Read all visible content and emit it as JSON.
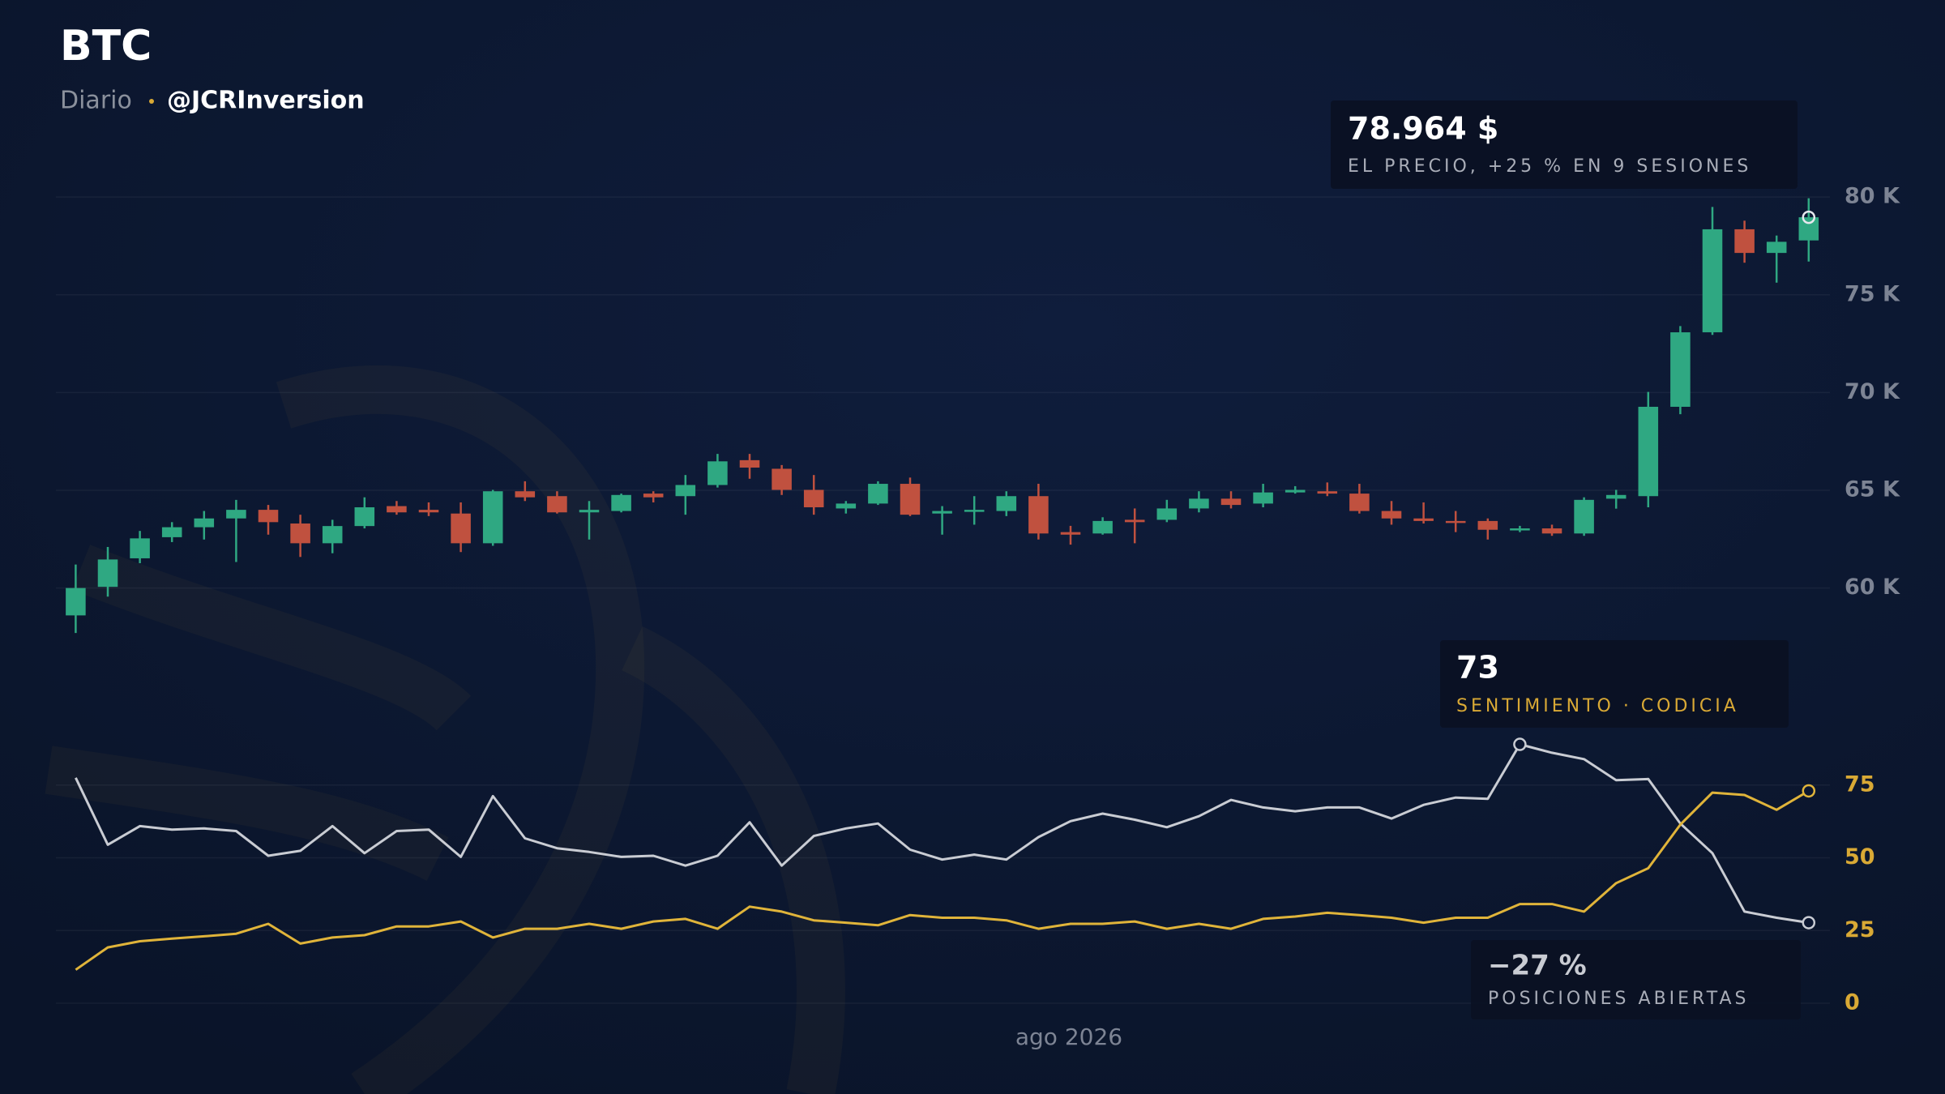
{
  "header": {
    "title": "BTC",
    "subtitle": "Diario",
    "source": "@JCRInversion"
  },
  "chart_data": [
    {
      "type": "candlestick",
      "up_color": "#2fa882",
      "down_color": "#c0513f",
      "open": [
        58600,
        60060,
        61520,
        62600,
        63110,
        63560,
        64000,
        63300,
        62290,
        63170,
        64190,
        64000,
        63810,
        62290,
        64950,
        64700,
        63870,
        63940,
        64830,
        64700,
        65270,
        66540,
        66100,
        65020,
        64070,
        64320,
        65330,
        63810,
        63940,
        63940,
        64700,
        62860,
        62790,
        63490,
        63490,
        64070,
        64570,
        64320,
        64890,
        64950,
        64830,
        63940,
        63560,
        63430,
        63430,
        62980,
        63050,
        62790,
        64570,
        64700,
        69270,
        73080,
        78350,
        77140,
        77780
      ],
      "high": [
        61200,
        62100,
        62920,
        63370,
        63940,
        64510,
        64250,
        63750,
        63490,
        64640,
        64450,
        64380,
        64380,
        65020,
        65460,
        64950,
        64450,
        64830,
        64950,
        65780,
        66860,
        66860,
        66290,
        65780,
        64450,
        65460,
        65650,
        64190,
        64700,
        64950,
        65330,
        63180,
        63620,
        64070,
        64510,
        64950,
        64950,
        65330,
        65210,
        65400,
        65330,
        64450,
        64380,
        63940,
        63560,
        63180,
        63240,
        64640,
        65020,
        70030,
        73400,
        79490,
        78790,
        78030,
        79940
      ],
      "low": [
        57700,
        59560,
        61270,
        62350,
        62480,
        61330,
        62730,
        61590,
        61780,
        63050,
        63750,
        63680,
        61840,
        62160,
        64450,
        63810,
        62480,
        63870,
        64380,
        63750,
        65140,
        65590,
        64760,
        63750,
        63810,
        64250,
        63680,
        62730,
        63240,
        63680,
        62480,
        62220,
        62730,
        62290,
        63370,
        63870,
        64070,
        64130,
        64830,
        64700,
        63810,
        63240,
        63300,
        62860,
        62480,
        62860,
        62670,
        62670,
        64060,
        64130,
        68890,
        72950,
        76640,
        75620,
        76700
      ],
      "close": [
        60000,
        61460,
        62540,
        63110,
        63560,
        64000,
        63370,
        62290,
        63170,
        64130,
        63870,
        63870,
        62290,
        64950,
        64640,
        63870,
        64000,
        64760,
        64640,
        65270,
        66480,
        66160,
        65020,
        64130,
        64320,
        65330,
        63750,
        63940,
        64000,
        64700,
        62790,
        62730,
        63430,
        63370,
        64070,
        64570,
        64250,
        64890,
        65020,
        64830,
        63940,
        63560,
        63430,
        63370,
        62980,
        63050,
        62790,
        64510,
        64760,
        69270,
        73080,
        78350,
        77140,
        77710,
        78964
      ],
      "ylim": [
        57000,
        81000
      ],
      "yticks": [
        {
          "value": 60000,
          "label": "60 K"
        },
        {
          "value": 65000,
          "label": "65 K"
        },
        {
          "value": 70000,
          "label": "70 K"
        },
        {
          "value": 75000,
          "label": "75 K"
        },
        {
          "value": 80000,
          "label": "80 K"
        }
      ],
      "grid": true,
      "annotation": {
        "value": "78.964 $",
        "text": "EL PRECIO, +25 % EN 9 SESIONES"
      }
    },
    {
      "type": "line",
      "series": [
        {
          "color": "#c9ccd3",
          "values": [
            77.5,
            54.5,
            60.9,
            59.7,
            60.1,
            59.2,
            50.7,
            52.4,
            60.9,
            51.6,
            59.2,
            59.7,
            50.3,
            71.2,
            56.7,
            53.3,
            52.0,
            50.3,
            50.7,
            47.3,
            50.7,
            62.2,
            47.3,
            57.5,
            60.1,
            61.8,
            52.8,
            49.4,
            51.1,
            49.4,
            57.1,
            62.6,
            65.2,
            63.1,
            60.5,
            64.3,
            69.9,
            67.3,
            66.0,
            67.3,
            67.3,
            63.5,
            68.2,
            70.7,
            70.3,
            89.0,
            86.1,
            83.9,
            76.7,
            77.1,
            61.8,
            51.6,
            31.5,
            29.4,
            27.7
          ]
        },
        {
          "color": "#e0b43a",
          "values": [
            11.5,
            19.2,
            21.3,
            22.2,
            23.0,
            23.9,
            27.3,
            20.5,
            22.6,
            23.4,
            26.4,
            26.4,
            28.1,
            22.6,
            25.6,
            25.6,
            27.3,
            25.6,
            28.1,
            29.0,
            25.6,
            33.2,
            31.5,
            28.5,
            27.7,
            26.8,
            30.3,
            29.4,
            29.4,
            28.5,
            25.6,
            27.3,
            27.3,
            28.1,
            25.6,
            27.3,
            25.6,
            29.0,
            29.8,
            31.1,
            30.3,
            29.4,
            27.7,
            29.4,
            29.4,
            34.1,
            34.1,
            31.5,
            41.3,
            46.4,
            61.4,
            72.4,
            71.6,
            66.5,
            73
          ]
        }
      ],
      "ylim": [
        0,
        95
      ],
      "yticks": [
        0,
        25,
        50,
        75
      ],
      "grid": true,
      "xlabel": "ago 2026",
      "annotations": [
        {
          "value": "73",
          "text": "SENTIMIENTO · CODICIA"
        },
        {
          "value": "−27 %",
          "text": "POSICIONES ABIERTAS"
        }
      ]
    }
  ]
}
